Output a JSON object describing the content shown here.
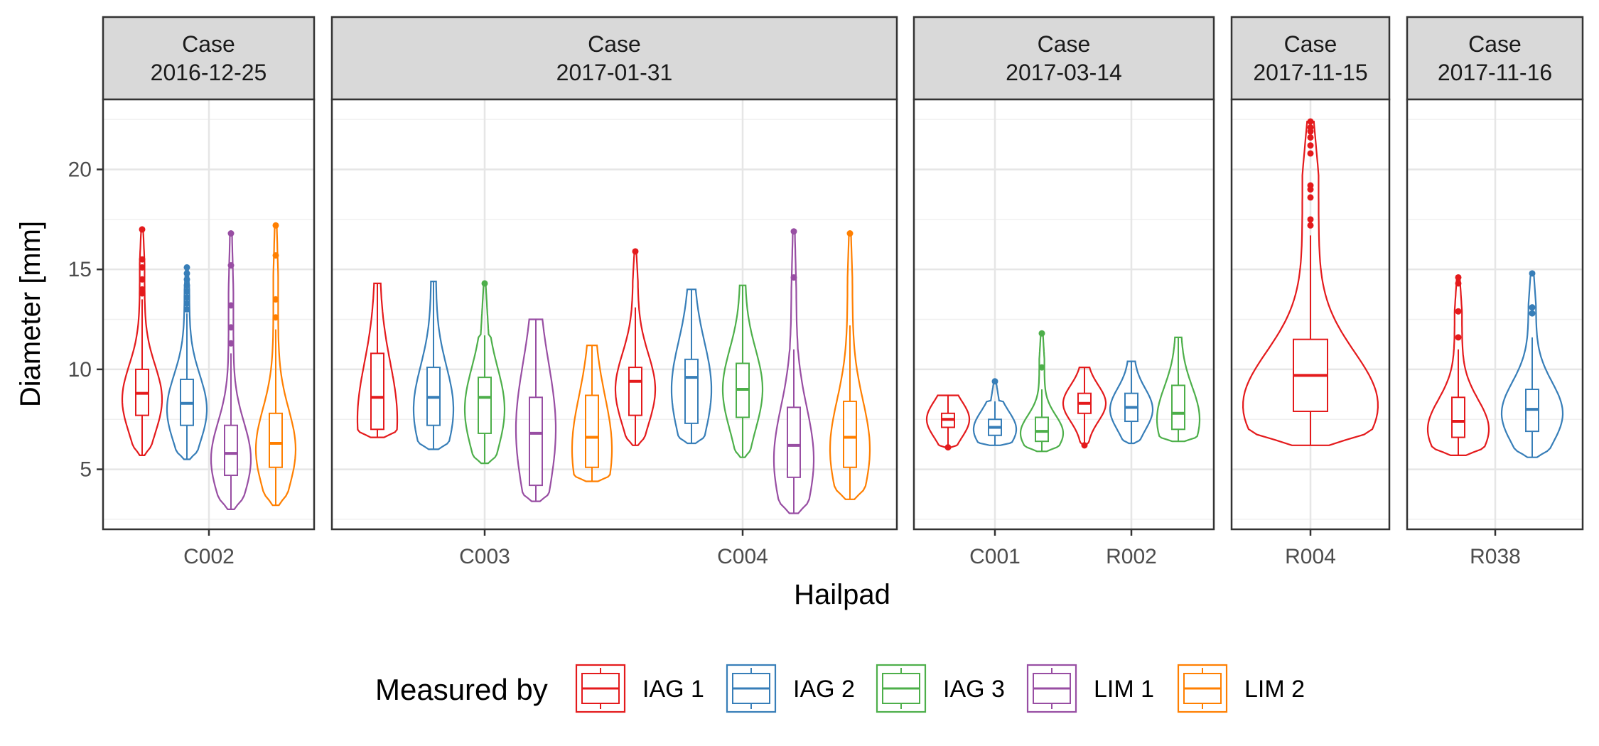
{
  "chart_data": {
    "type": "violin",
    "xlabel": "Hailpad",
    "ylabel": "Diameter [mm]",
    "ylim": [
      2,
      23.5
    ],
    "y_ticks": [
      5,
      10,
      15,
      20
    ],
    "grid": true,
    "legend": {
      "title": "Measured by",
      "placement": "bottom",
      "entries": [
        "IAG 1",
        "IAG 2",
        "IAG 3",
        "LIM 1",
        "LIM 2"
      ]
    },
    "colors": {
      "IAG 1": "#e41a1c",
      "IAG 2": "#377eb8",
      "IAG 3": "#4daf4a",
      "LIM 1": "#984ea3",
      "LIM 2": "#ff7f00"
    },
    "facets": [
      {
        "label_line1": "Case",
        "label_line2": "2016-12-25",
        "hailpads": [
          {
            "name": "C002",
            "groups": [
              {
                "by": "IAG 1",
                "min": 5.7,
                "q1": 7.7,
                "median": 8.8,
                "q3": 10.0,
                "max": 13.5,
                "outliers": [
                  13.8,
                  14.0,
                  14.5,
                  15.1,
                  15.5,
                  17.0
                ],
                "vmin": 5.7,
                "vmax": 17.0,
                "mode": 8.5
              },
              {
                "by": "IAG 2",
                "min": 5.5,
                "q1": 7.2,
                "median": 8.3,
                "q3": 9.5,
                "max": 12.8,
                "outliers": [
                  13.0,
                  13.3,
                  13.6,
                  13.9,
                  14.2,
                  14.5,
                  14.8,
                  15.1
                ],
                "vmin": 5.5,
                "vmax": 15.1,
                "mode": 8.0
              },
              {
                "by": "LIM 1",
                "min": 3.0,
                "q1": 4.7,
                "median": 5.8,
                "q3": 7.2,
                "max": 10.8,
                "outliers": [
                  11.3,
                  12.1,
                  13.2,
                  15.2,
                  16.8
                ],
                "vmin": 3.0,
                "vmax": 16.8,
                "mode": 5.5
              },
              {
                "by": "LIM 2",
                "min": 3.2,
                "q1": 5.1,
                "median": 6.3,
                "q3": 7.8,
                "max": 12.0,
                "outliers": [
                  12.6,
                  13.5,
                  15.7,
                  17.2
                ],
                "vmin": 3.2,
                "vmax": 17.2,
                "mode": 6.0
              }
            ]
          }
        ]
      },
      {
        "label_line1": "Case",
        "label_line2": "2017-01-31",
        "hailpads": [
          {
            "name": "C003",
            "groups": [
              {
                "by": "IAG 1",
                "min": 6.6,
                "q1": 7.0,
                "median": 8.6,
                "q3": 10.8,
                "max": 14.3,
                "outliers": [],
                "vmin": 6.6,
                "vmax": 14.3,
                "mode": 7.5
              },
              {
                "by": "IAG 2",
                "min": 6.0,
                "q1": 7.2,
                "median": 8.6,
                "q3": 10.1,
                "max": 14.4,
                "outliers": [],
                "vmin": 6.0,
                "vmax": 14.4,
                "mode": 8.0
              },
              {
                "by": "IAG 3",
                "min": 5.3,
                "q1": 6.8,
                "median": 8.6,
                "q3": 9.6,
                "max": 11.7,
                "outliers": [
                  14.3
                ],
                "vmin": 5.3,
                "vmax": 14.3,
                "mode": 8.0
              },
              {
                "by": "LIM 1",
                "min": 3.4,
                "q1": 4.2,
                "median": 6.8,
                "q3": 8.6,
                "max": 12.5,
                "outliers": [],
                "vmin": 3.4,
                "vmax": 12.5,
                "mode": 7.0
              },
              {
                "by": "LIM 2",
                "min": 4.4,
                "q1": 5.1,
                "median": 6.6,
                "q3": 8.7,
                "max": 11.2,
                "outliers": [],
                "vmin": 4.4,
                "vmax": 11.2,
                "mode": 6.0
              }
            ]
          },
          {
            "name": "C004",
            "groups": [
              {
                "by": "IAG 1",
                "min": 6.2,
                "q1": 7.7,
                "median": 9.4,
                "q3": 10.1,
                "max": 13.1,
                "outliers": [
                  15.9
                ],
                "vmin": 6.2,
                "vmax": 15.9,
                "mode": 9.0
              },
              {
                "by": "IAG 2",
                "min": 6.3,
                "q1": 7.3,
                "median": 9.6,
                "q3": 10.5,
                "max": 14.0,
                "outliers": [],
                "vmin": 6.3,
                "vmax": 14.0,
                "mode": 9.0
              },
              {
                "by": "IAG 3",
                "min": 5.6,
                "q1": 7.6,
                "median": 9.0,
                "q3": 10.3,
                "max": 14.2,
                "outliers": [],
                "vmin": 5.6,
                "vmax": 14.2,
                "mode": 9.0
              },
              {
                "by": "LIM 1",
                "min": 2.8,
                "q1": 4.6,
                "median": 6.2,
                "q3": 8.1,
                "max": 11.0,
                "outliers": [
                  14.6,
                  16.9
                ],
                "vmin": 2.8,
                "vmax": 16.9,
                "mode": 5.5
              },
              {
                "by": "LIM 2",
                "min": 3.5,
                "q1": 5.1,
                "median": 6.6,
                "q3": 8.4,
                "max": 12.2,
                "outliers": [
                  16.8
                ],
                "vmin": 3.5,
                "vmax": 16.8,
                "mode": 6.0
              }
            ]
          }
        ]
      },
      {
        "label_line1": "Case",
        "label_line2": "2017-03-14",
        "hailpads": [
          {
            "name": "C001",
            "groups": [
              {
                "by": "IAG 1",
                "min": 6.1,
                "q1": 7.1,
                "median": 7.5,
                "q3": 7.8,
                "max": 8.7,
                "outliers": [
                  6.1
                ],
                "vmin": 6.1,
                "vmax": 8.7,
                "mode": 7.5
              },
              {
                "by": "IAG 2",
                "min": 6.2,
                "q1": 6.7,
                "median": 7.1,
                "q3": 7.5,
                "max": 8.4,
                "outliers": [
                  9.4
                ],
                "vmin": 6.2,
                "vmax": 9.4,
                "mode": 7.0
              },
              {
                "by": "IAG 3",
                "min": 5.9,
                "q1": 6.4,
                "median": 6.9,
                "q3": 7.6,
                "max": 9.0,
                "outliers": [
                  10.1,
                  11.8
                ],
                "vmin": 5.9,
                "vmax": 11.8,
                "mode": 6.8
              }
            ]
          },
          {
            "name": "R002",
            "groups": [
              {
                "by": "IAG 1",
                "min": 6.3,
                "q1": 7.8,
                "median": 8.3,
                "q3": 8.8,
                "max": 10.1,
                "outliers": [
                  6.2
                ],
                "vmin": 6.2,
                "vmax": 10.1,
                "mode": 8.3
              },
              {
                "by": "IAG 2",
                "min": 6.3,
                "q1": 7.4,
                "median": 8.1,
                "q3": 8.8,
                "max": 10.4,
                "outliers": [],
                "vmin": 6.3,
                "vmax": 10.4,
                "mode": 8.0
              },
              {
                "by": "IAG 3",
                "min": 6.4,
                "q1": 7.0,
                "median": 7.8,
                "q3": 9.2,
                "max": 11.6,
                "outliers": [],
                "vmin": 6.4,
                "vmax": 11.6,
                "mode": 7.5
              }
            ]
          }
        ]
      },
      {
        "label_line1": "Case",
        "label_line2": "2017-11-15",
        "hailpads": [
          {
            "name": "R004",
            "groups": [
              {
                "by": "IAG 1",
                "min": 6.2,
                "q1": 7.9,
                "median": 9.7,
                "q3": 11.5,
                "max": 16.7,
                "outliers": [
                  17.2,
                  17.5,
                  18.6,
                  19.0,
                  19.2,
                  20.8,
                  21.2,
                  21.6,
                  21.9,
                  22.1,
                  22.4
                ],
                "vmin": 6.2,
                "vmax": 22.4,
                "mode": 8.2
              }
            ]
          }
        ]
      },
      {
        "label_line1": "Case",
        "label_line2": "2017-11-16",
        "hailpads": [
          {
            "name": "R038",
            "groups": [
              {
                "by": "IAG 1",
                "min": 5.7,
                "q1": 6.6,
                "median": 7.4,
                "q3": 8.6,
                "max": 11.0,
                "outliers": [
                  11.6,
                  12.9,
                  14.3,
                  14.6
                ],
                "vmin": 5.7,
                "vmax": 14.6,
                "mode": 7.0
              },
              {
                "by": "IAG 2",
                "min": 5.6,
                "q1": 6.9,
                "median": 8.0,
                "q3": 9.0,
                "max": 11.6,
                "outliers": [
                  12.8,
                  13.1,
                  14.8
                ],
                "vmin": 5.6,
                "vmax": 14.8,
                "mode": 7.8
              }
            ]
          }
        ]
      }
    ]
  }
}
